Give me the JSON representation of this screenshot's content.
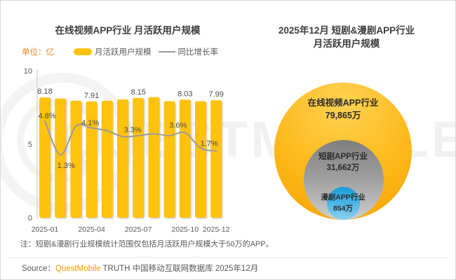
{
  "page": {
    "background": "#ffffff",
    "border_color": "#d8d8d8"
  },
  "watermark": {
    "text": "QUESTMOBILE",
    "color": "#f1f1f1"
  },
  "left_chart": {
    "title": "在线视频APP行业 月活跃用户规模",
    "unit_label": "单位：亿",
    "unit_color": "#EE8220",
    "legend": [
      {
        "label": "月活跃用户规模",
        "type": "bar",
        "color": "#FFC20E"
      },
      {
        "label": "同比增长率",
        "type": "line",
        "color": "#9B9B9B"
      }
    ],
    "chart_data": {
      "type": "bar+line",
      "categories": [
        "2025-01",
        "2025-02",
        "2025-03",
        "2025-04",
        "2025-05",
        "2025-06",
        "2025-07",
        "2025-08",
        "2025-09",
        "2025-10",
        "2025-11",
        "2025-12"
      ],
      "series": [
        {
          "name": "月活跃用户规模",
          "type": "bar",
          "unit": "亿",
          "color": "#FFC20E",
          "values": [
            8.18,
            8.1,
            7.95,
            7.91,
            7.96,
            8.05,
            8.15,
            8.2,
            7.93,
            8.03,
            7.93,
            7.99
          ],
          "point_labels": {
            "0": "8.18",
            "3": "7.91",
            "6": "8.15",
            "9": "8.03",
            "11": "7.99"
          }
        },
        {
          "name": "同比增长率",
          "type": "line",
          "unit": "%",
          "color": "#9B9B9B",
          "values": [
            4.8,
            1.3,
            4.3,
            4.1,
            3.8,
            3.2,
            3.3,
            3.5,
            3.3,
            3.6,
            2.0,
            1.7
          ],
          "point_labels": {
            "0": "4.8%",
            "1": "1.3%",
            "3": "4.1%",
            "6": "3.3%",
            "9": "3.6%",
            "11": "1.7%"
          }
        }
      ],
      "ylim": [
        0,
        10
      ],
      "yticks": [
        0,
        5,
        10
      ],
      "xtick_labels": {
        "0": "2025-01",
        "3": "2025-04",
        "6": "2025-07",
        "9": "2025-10",
        "11": "2025-12"
      },
      "grid": false,
      "legend_position": "top"
    }
  },
  "right_chart": {
    "title_line1": "2025年12月 短剧&漫剧APP行业",
    "title_line2": "月活跃用户规模",
    "chart_data": {
      "type": "nested-circles",
      "unit": "万",
      "circles": [
        {
          "label": "在线视频APP行业",
          "value": "79,865万",
          "value_wan": 79865,
          "color": "#FDB614"
        },
        {
          "label": "短剧APP行业",
          "value": "31,662万",
          "value_wan": 31662,
          "color": "#9E9E9E"
        },
        {
          "label": "漫剧APP行业",
          "value": "854万",
          "value_wan": 854,
          "color": "#2EA7DB"
        }
      ]
    }
  },
  "note": "注：短剧&漫剧行业规模统计范围仅包括月活跃用户规模大于50万的APP。",
  "source": {
    "prefix": "Source：",
    "brand": "QuestMobile",
    "brand_color": "#F39800",
    "suffix": " TRUTH 中国移动互联网数据库 2025年12月"
  }
}
